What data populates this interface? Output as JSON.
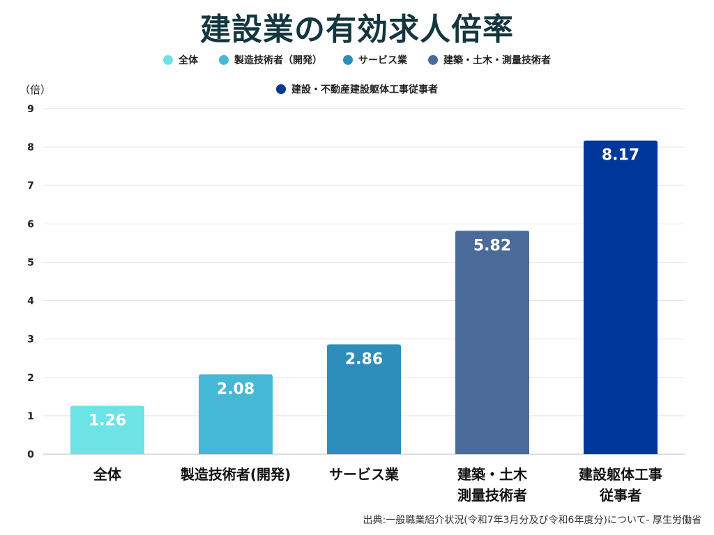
{
  "chart_data": {
    "type": "bar",
    "title": "建設業の有効求人倍率",
    "ylabel": "（倍）",
    "ylim": [
      0,
      9
    ],
    "yticks": [
      0,
      1,
      2,
      3,
      4,
      5,
      6,
      7,
      8,
      9
    ],
    "grid": true,
    "legend_position": "top",
    "categories": [
      [
        "全体"
      ],
      [
        "製造技術者(開発)"
      ],
      [
        "サービス業"
      ],
      [
        "建築・土木",
        "測量技術者"
      ],
      [
        "建設躯体工事",
        "従事者"
      ]
    ],
    "values": [
      1.26,
      2.08,
      2.86,
      5.82,
      8.17
    ],
    "data_labels": [
      "1.26",
      "2.08",
      "2.86",
      "5.82",
      "8.17"
    ],
    "colors": [
      "#6ee3e6",
      "#45b8d5",
      "#2e8ebb",
      "#4a6b9a",
      "#00379a"
    ],
    "legend": {
      "row1": [
        {
          "label": "全体",
          "color": "#6ee3e6"
        },
        {
          "label": "製造技術者（開発）",
          "color": "#45b8d5"
        },
        {
          "label": "サービス業",
          "color": "#2e8ebb"
        },
        {
          "label": "建築・土木・測量技術者",
          "color": "#4a6b9a"
        }
      ],
      "row2": [
        {
          "label": "建設・不動産建設躯体工事従事者",
          "color": "#00379a"
        }
      ]
    }
  },
  "source": "出典:一般職業紹介状況(令和7年3月分及び令和6年度分)について- 厚生労働省"
}
